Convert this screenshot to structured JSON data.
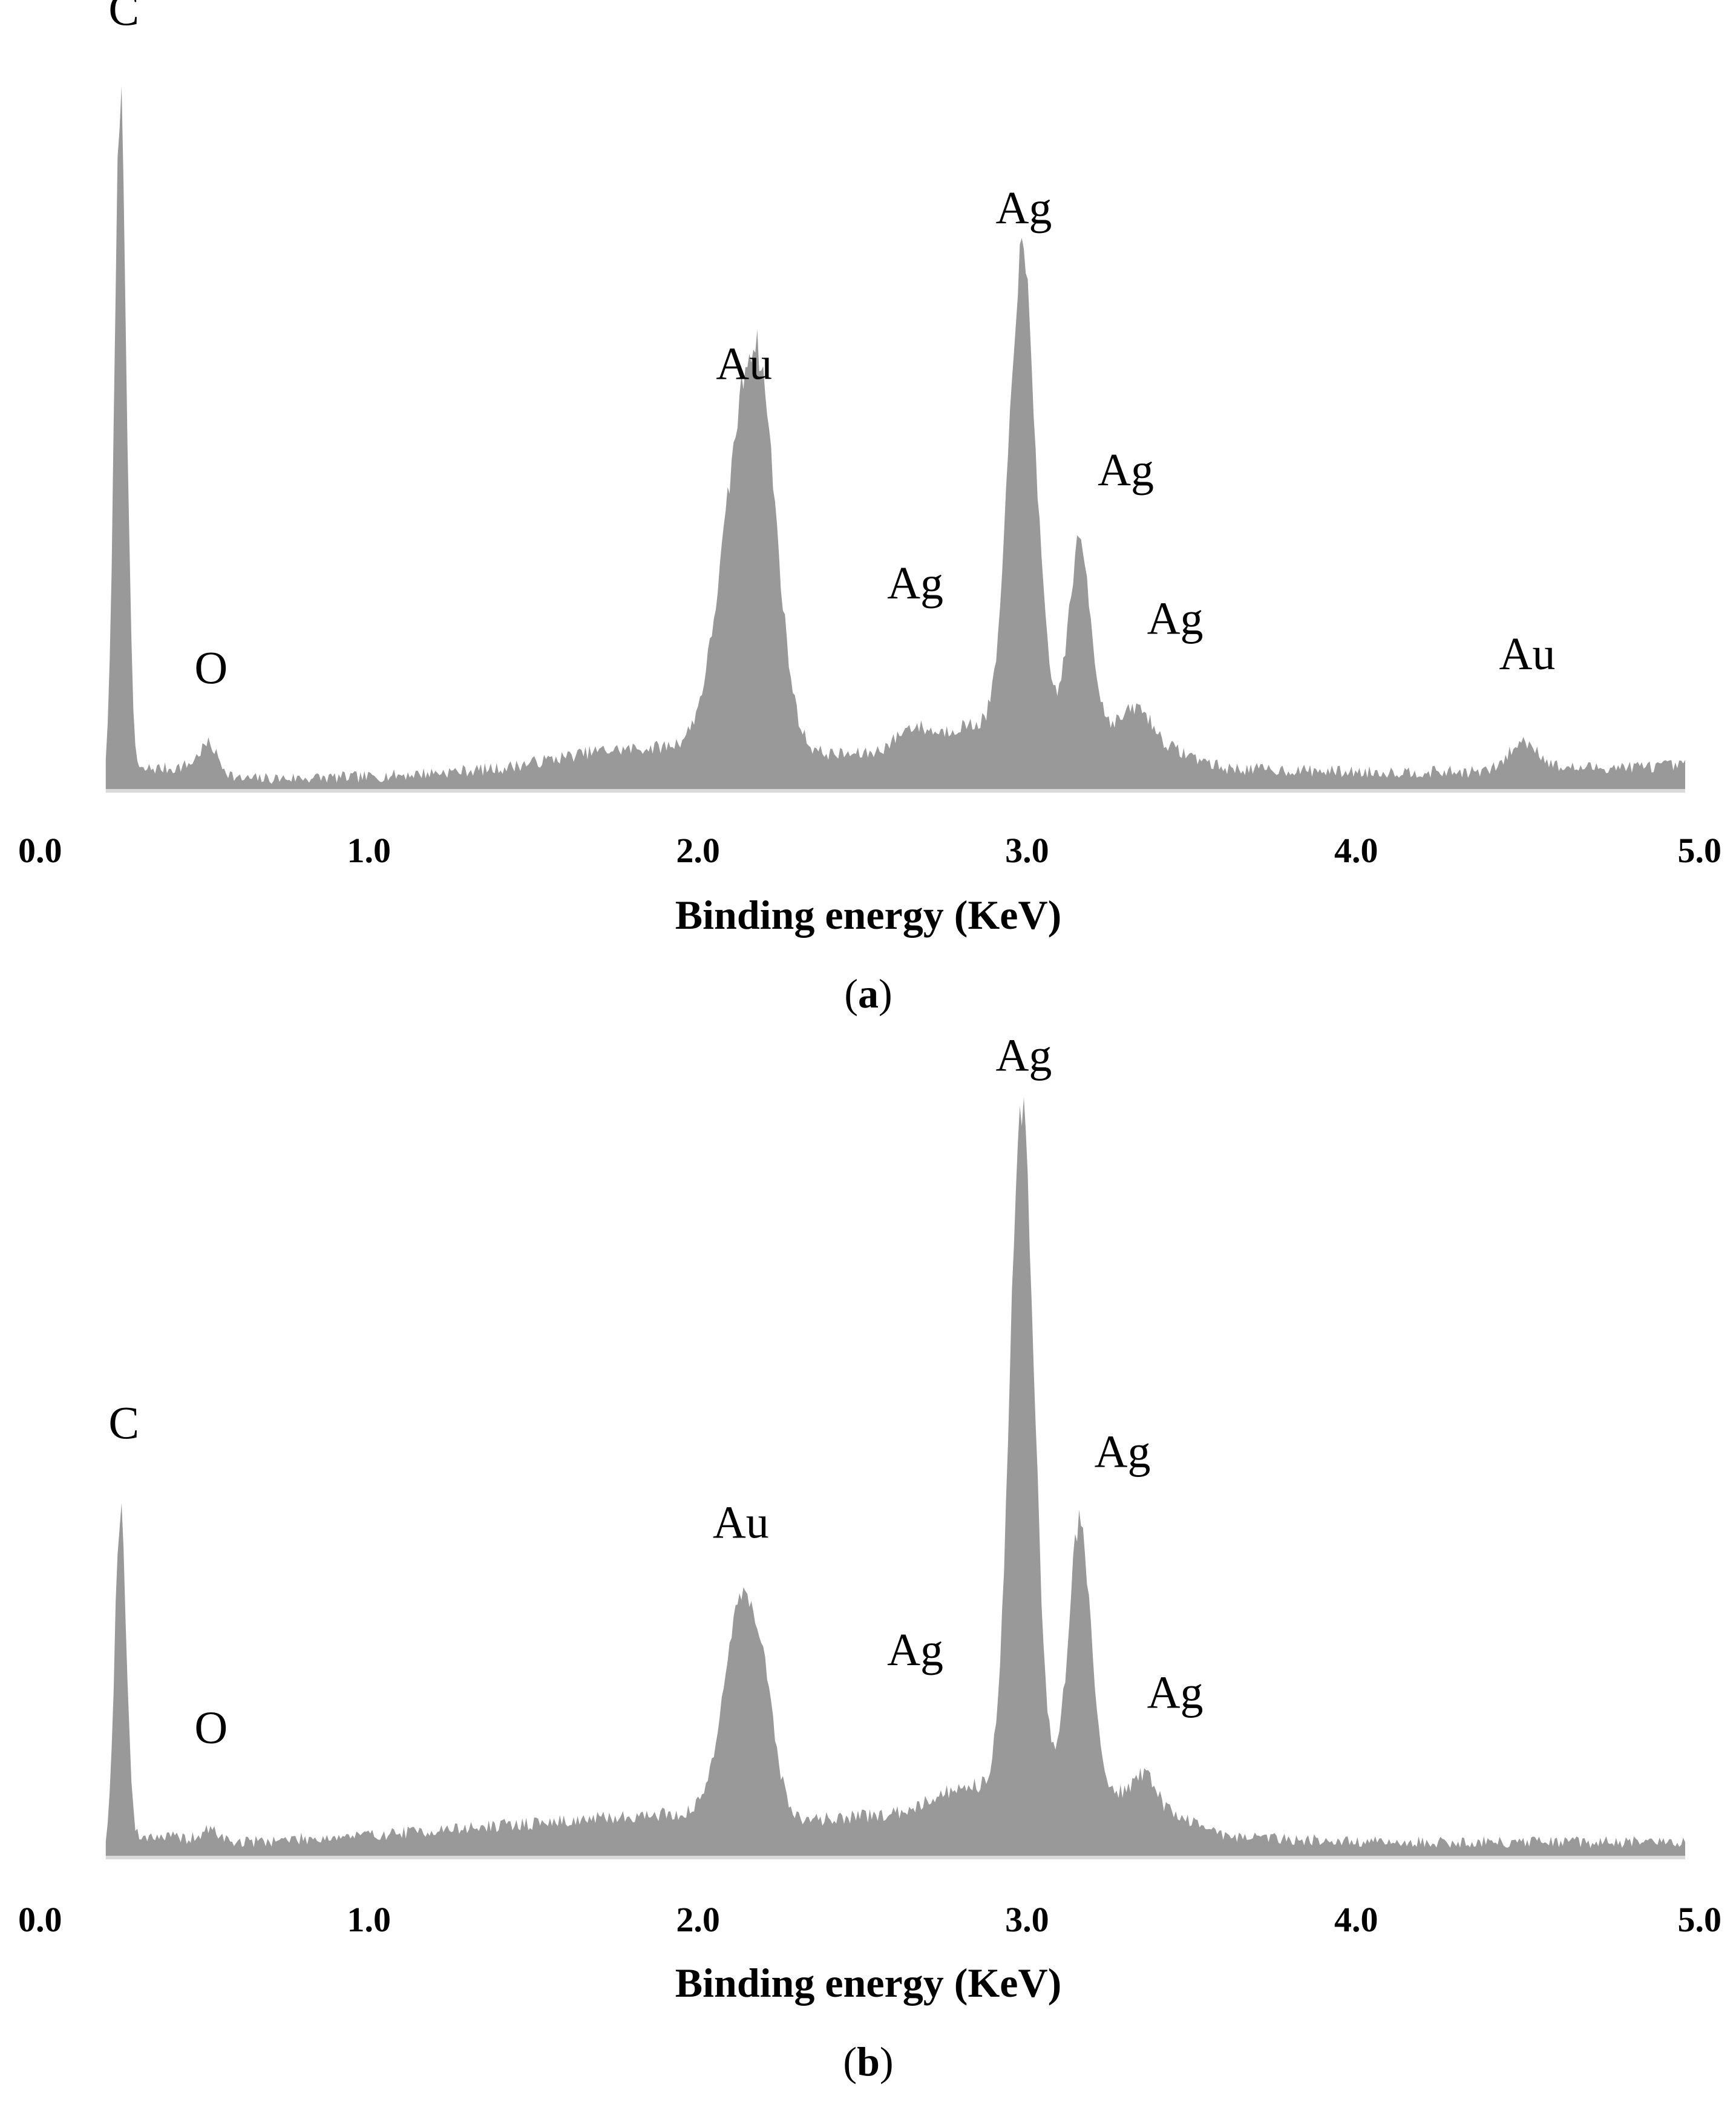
{
  "colors": {
    "fill": "#999999",
    "baseline": "#d9d9d9",
    "text": "#000000"
  },
  "chart_data": [
    {
      "type": "area",
      "panel": "a",
      "xlabel": "Binding energy (KeV)",
      "ylabel": "",
      "caption": {
        "open": "(",
        "letter": "a",
        "close": ")"
      },
      "xlim": [
        0,
        5
      ],
      "ylim": [
        0,
        100
      ],
      "x_ticks": [
        "0.0",
        "1.0",
        "2.0",
        "3.0",
        "4.0",
        "5.0"
      ],
      "noise_seed": 7,
      "background": [
        [
          0.2,
          0
        ],
        [
          0.33,
          3
        ],
        [
          0.4,
          3
        ],
        [
          0.52,
          4
        ],
        [
          0.6,
          1.5
        ],
        [
          1.0,
          1.8
        ],
        [
          1.4,
          3
        ],
        [
          1.7,
          5.5
        ],
        [
          1.9,
          6
        ],
        [
          2.35,
          5
        ],
        [
          2.6,
          5
        ],
        [
          2.8,
          9
        ],
        [
          3.2,
          10
        ],
        [
          3.6,
          3
        ],
        [
          4.0,
          2.5
        ],
        [
          4.4,
          2.5
        ],
        [
          4.6,
          3
        ],
        [
          5.0,
          3.4
        ]
      ],
      "peaks": [
        {
          "center": 0.245,
          "height": 97,
          "width": 0.018
        },
        {
          "center": 0.51,
          "height": 2.5,
          "width": 0.025
        },
        {
          "center": 2.145,
          "height": 46,
          "width": 0.072
        },
        {
          "center": 2.2,
          "height": 18,
          "width": 0.045
        },
        {
          "center": 2.64,
          "height": 3,
          "width": 0.05
        },
        {
          "center": 2.985,
          "height": 66,
          "width": 0.04
        },
        {
          "center": 3.16,
          "height": 25,
          "width": 0.032
        },
        {
          "center": 3.34,
          "height": 4,
          "width": 0.04
        },
        {
          "center": 4.51,
          "height": 4,
          "width": 0.045
        }
      ],
      "peak_labels": [
        {
          "text": "C",
          "x": 0.255,
          "y": 108
        },
        {
          "text": "O",
          "x": 0.52,
          "y": 15
        },
        {
          "text": "Au",
          "x": 2.14,
          "y": 58
        },
        {
          "text": "Ag",
          "x": 2.66,
          "y": 27
        },
        {
          "text": "Ag",
          "x": 2.99,
          "y": 80
        },
        {
          "text": "Ag",
          "x": 3.3,
          "y": 43
        },
        {
          "text": "Ag",
          "x": 3.45,
          "y": 22
        },
        {
          "text": "Au",
          "x": 4.52,
          "y": 17
        }
      ]
    },
    {
      "type": "area",
      "panel": "b",
      "xlabel": "Binding energy (KeV)",
      "ylabel": "",
      "caption": {
        "open": "(",
        "letter": "b",
        "close": ")"
      },
      "xlim": [
        0,
        5
      ],
      "ylim": [
        0,
        100
      ],
      "x_ticks": [
        "0.0",
        "1.0",
        "2.0",
        "3.0",
        "4.0",
        "5.0"
      ],
      "noise_seed": 19,
      "background": [
        [
          0.2,
          0
        ],
        [
          0.33,
          3
        ],
        [
          0.45,
          2.5
        ],
        [
          0.6,
          2
        ],
        [
          1.0,
          3
        ],
        [
          1.3,
          4
        ],
        [
          1.6,
          5
        ],
        [
          1.9,
          6
        ],
        [
          2.3,
          5
        ],
        [
          2.6,
          6
        ],
        [
          2.8,
          10
        ],
        [
          3.3,
          9
        ],
        [
          3.6,
          3
        ],
        [
          4.0,
          2
        ],
        [
          4.5,
          2
        ],
        [
          5.0,
          2
        ]
      ],
      "peaks": [
        {
          "center": 0.245,
          "height": 48,
          "width": 0.018
        },
        {
          "center": 0.52,
          "height": 1.5,
          "width": 0.025
        },
        {
          "center": 2.13,
          "height": 29,
          "width": 0.055
        },
        {
          "center": 2.2,
          "height": 10,
          "width": 0.04
        },
        {
          "center": 2.985,
          "height": 96,
          "width": 0.037
        },
        {
          "center": 3.16,
          "height": 38,
          "width": 0.034
        },
        {
          "center": 3.36,
          "height": 4,
          "width": 0.03
        }
      ],
      "peak_labels": [
        {
          "text": "C",
          "x": 0.255,
          "y": 59
        },
        {
          "text": "O",
          "x": 0.52,
          "y": 16
        },
        {
          "text": "Au",
          "x": 2.13,
          "y": 45
        },
        {
          "text": "Ag",
          "x": 2.66,
          "y": 27
        },
        {
          "text": "Ag",
          "x": 2.99,
          "y": 111
        },
        {
          "text": "Ag",
          "x": 3.29,
          "y": 55
        },
        {
          "text": "Ag",
          "x": 3.45,
          "y": 21
        }
      ]
    }
  ]
}
